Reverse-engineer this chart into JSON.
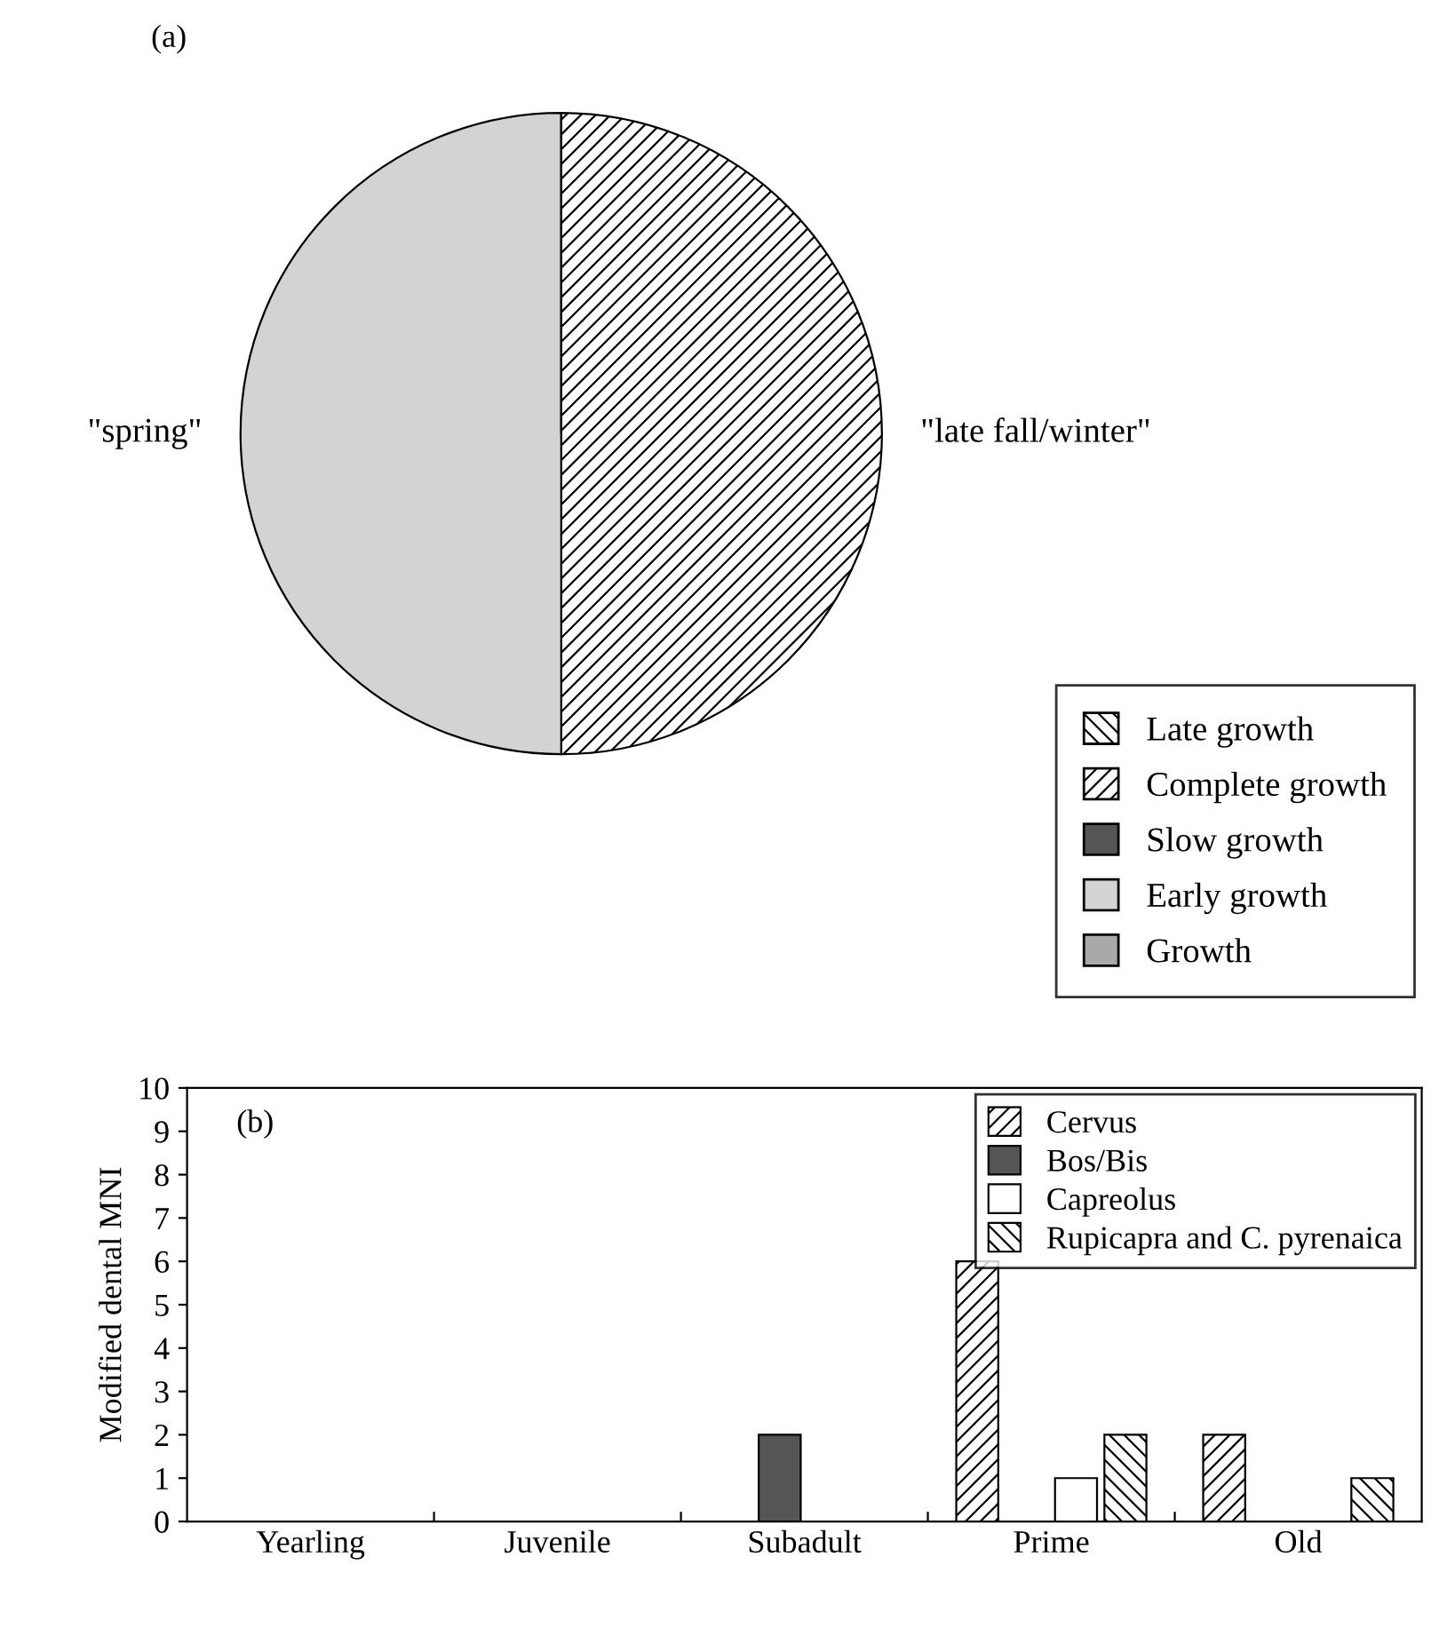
{
  "chart_data": [
    {
      "type": "pie",
      "title": "(a)",
      "categories": [
        "Late growth",
        "Complete growth",
        "Slow growth",
        "Early growth",
        "Growth"
      ],
      "values": [
        0,
        50,
        0,
        50,
        0
      ],
      "colors": [
        "#000000",
        "#000000",
        "#555555",
        "#d3d3d3",
        "#a9a9a9"
      ],
      "annotations": [
        "\"spring\"",
        "\"late fall/winter\""
      ],
      "legend": "bottom right"
    },
    {
      "type": "bar",
      "title": "(b)",
      "ylabel": "Modified dental MNI",
      "categories": [
        "Yearling",
        "Juvenile",
        "Subadult",
        "Prime",
        "Old"
      ],
      "series": [
        {
          "name": "Cervus",
          "color": "#000000",
          "values": [
            null,
            null,
            null,
            6,
            2
          ]
        },
        {
          "name": "Bos/Bis",
          "color": "#555555",
          "values": [
            null,
            null,
            2,
            null,
            null
          ]
        },
        {
          "name": "Capreolus",
          "color": "#ffffff",
          "values": [
            null,
            null,
            null,
            1,
            null
          ]
        },
        {
          "name": "Rupicapra and C. pyrenaica",
          "color": "#000000",
          "values": [
            null,
            null,
            null,
            2,
            1
          ]
        }
      ],
      "ylim": [
        0,
        10
      ],
      "yticks": [
        0,
        1,
        2,
        3,
        4,
        5,
        6,
        7,
        8,
        9,
        10
      ],
      "legend": "top right",
      "grid": false
    }
  ]
}
